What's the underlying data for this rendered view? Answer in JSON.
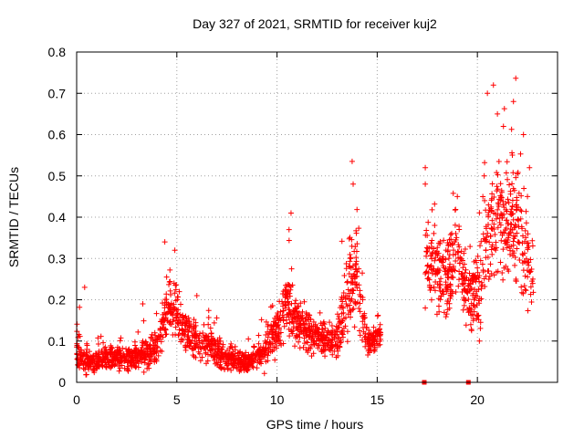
{
  "chart_data": {
    "type": "scatter",
    "title": "Day 327 of 2021, SRMTID for receiver kuj2",
    "xlabel": "GPS time / hours",
    "ylabel": "SRMTID / TECUs",
    "xlim": [
      0,
      24
    ],
    "ylim": [
      0,
      0.8
    ],
    "xticks": [
      0,
      5,
      10,
      15,
      20
    ],
    "yticks": [
      0,
      0.1,
      0.2,
      0.3,
      0.4,
      0.5,
      0.6,
      0.7,
      0.8
    ],
    "ytick_labels": [
      "0",
      "0.1",
      "0.2",
      "0.3",
      "0.4",
      "0.5",
      "0.6",
      "0.7",
      "0.8"
    ],
    "grid": true,
    "marker": "+",
    "series": [
      {
        "name": "SRMTID",
        "color": "#ff0000",
        "envelope": [
          [
            0.0,
            0.1,
            0.06
          ],
          [
            0.25,
            0.06,
            0.04
          ],
          [
            0.5,
            0.05,
            0.03
          ],
          [
            1.0,
            0.05,
            0.03
          ],
          [
            1.5,
            0.06,
            0.03
          ],
          [
            2.0,
            0.06,
            0.03
          ],
          [
            2.5,
            0.06,
            0.03
          ],
          [
            3.0,
            0.06,
            0.03
          ],
          [
            3.5,
            0.07,
            0.04
          ],
          [
            4.0,
            0.08,
            0.04
          ],
          [
            4.5,
            0.18,
            0.08
          ],
          [
            5.0,
            0.17,
            0.07
          ],
          [
            5.5,
            0.12,
            0.05
          ],
          [
            6.0,
            0.1,
            0.05
          ],
          [
            6.5,
            0.09,
            0.04
          ],
          [
            7.0,
            0.07,
            0.04
          ],
          [
            7.5,
            0.06,
            0.03
          ],
          [
            8.0,
            0.05,
            0.03
          ],
          [
            8.5,
            0.05,
            0.03
          ],
          [
            9.0,
            0.06,
            0.03
          ],
          [
            9.5,
            0.08,
            0.04
          ],
          [
            10.0,
            0.13,
            0.06
          ],
          [
            10.5,
            0.2,
            0.09
          ],
          [
            11.0,
            0.15,
            0.06
          ],
          [
            11.5,
            0.12,
            0.05
          ],
          [
            12.0,
            0.11,
            0.05
          ],
          [
            12.5,
            0.1,
            0.04
          ],
          [
            13.0,
            0.1,
            0.05
          ],
          [
            13.5,
            0.22,
            0.12
          ],
          [
            14.0,
            0.25,
            0.12
          ],
          [
            14.5,
            0.1,
            0.04
          ],
          [
            15.2,
            0.12,
            0.03
          ],
          [
            17.4,
            0.3,
            0.1
          ],
          [
            18.0,
            0.28,
            0.1
          ],
          [
            18.5,
            0.25,
            0.1
          ],
          [
            19.0,
            0.32,
            0.12
          ],
          [
            19.5,
            0.2,
            0.08
          ],
          [
            20.0,
            0.22,
            0.1
          ],
          [
            20.5,
            0.35,
            0.15
          ],
          [
            21.0,
            0.42,
            0.18
          ],
          [
            21.5,
            0.38,
            0.16
          ],
          [
            22.0,
            0.4,
            0.18
          ],
          [
            22.5,
            0.28,
            0.12
          ],
          [
            22.8,
            0.22,
            0.08
          ]
        ],
        "gaps": [
          [
            15.2,
            17.4
          ]
        ],
        "samples_per_hour": 110,
        "outliers": [
          [
            0.4,
            0.23
          ],
          [
            3.3,
            0.19
          ],
          [
            4.4,
            0.34
          ],
          [
            4.9,
            0.32
          ],
          [
            6.0,
            0.21
          ],
          [
            10.7,
            0.41
          ],
          [
            10.6,
            0.37
          ],
          [
            13.75,
            0.535
          ],
          [
            13.8,
            0.48
          ],
          [
            17.4,
            0.52
          ],
          [
            17.4,
            0.48
          ],
          [
            17.4,
            0.18
          ],
          [
            19.0,
            0.45
          ],
          [
            20.5,
            0.7
          ],
          [
            20.8,
            0.72
          ],
          [
            21.0,
            0.65
          ],
          [
            21.3,
            0.62
          ],
          [
            21.8,
            0.68
          ],
          [
            22.3,
            0.6
          ],
          [
            22.6,
            0.52
          ],
          [
            22.5,
            0.45
          ],
          [
            20.1,
            0.1
          ]
        ],
        "zero_markers": [
          17.35,
          19.55
        ]
      }
    ]
  }
}
